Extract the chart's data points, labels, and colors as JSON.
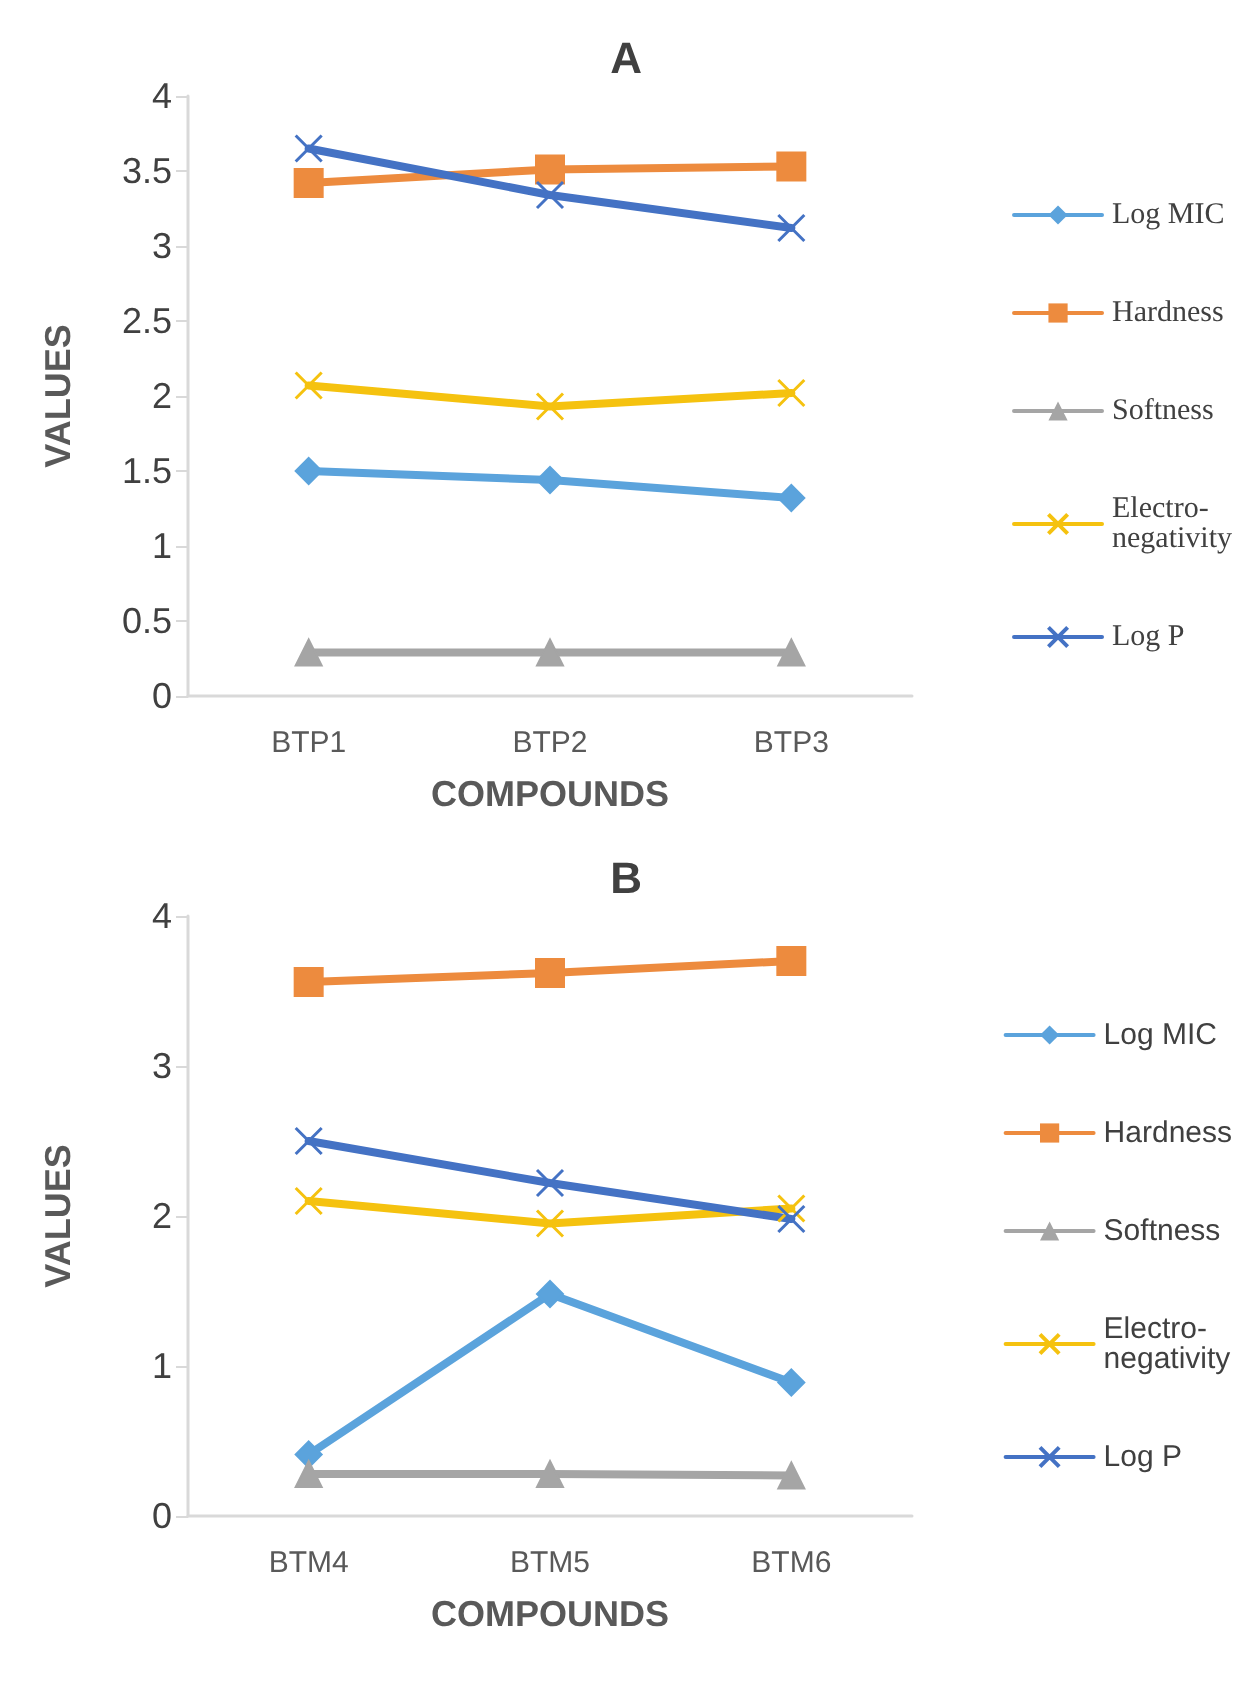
{
  "chart_data": [
    {
      "type": "line",
      "title": "A",
      "xlabel": "COMPOUNDS",
      "ylabel": "VALUES",
      "categories": [
        "BTP1",
        "BTP2",
        "BTP3"
      ],
      "ylim": [
        0,
        4
      ],
      "yticks": [
        0,
        0.5,
        1,
        1.5,
        2,
        2.5,
        3,
        3.5,
        4
      ],
      "grid": false,
      "legend": "right",
      "series": [
        {
          "name": "Log MIC",
          "color": "#5ba3dc",
          "marker": "diamond",
          "values": [
            1.5,
            1.44,
            1.32
          ]
        },
        {
          "name": "Hardness",
          "color": "#ed8b3e",
          "marker": "square",
          "values": [
            3.42,
            3.51,
            3.53
          ]
        },
        {
          "name": "Softness",
          "color": "#a5a5a5",
          "marker": "triangle",
          "values": [
            0.29,
            0.29,
            0.29
          ]
        },
        {
          "name": "Electro-\nnegativity",
          "color": "#f5c20f",
          "marker": "cross",
          "values": [
            2.07,
            1.93,
            2.02
          ]
        },
        {
          "name": "Log P",
          "color": "#4472c4",
          "marker": "cross",
          "values": [
            3.65,
            3.34,
            3.12
          ]
        }
      ]
    },
    {
      "type": "line",
      "title": "B",
      "xlabel": "COMPOUNDS",
      "ylabel": "VALUES",
      "categories": [
        "BTM4",
        "BTM5",
        "BTM6"
      ],
      "ylim": [
        0,
        4
      ],
      "yticks": [
        0,
        1,
        2,
        3,
        4
      ],
      "grid": false,
      "legend": "right",
      "series": [
        {
          "name": "Log MIC",
          "color": "#5ba3dc",
          "marker": "diamond",
          "values": [
            0.41,
            1.48,
            0.89
          ]
        },
        {
          "name": "Hardness",
          "color": "#ed8b3e",
          "marker": "square",
          "values": [
            3.56,
            3.62,
            3.7
          ]
        },
        {
          "name": "Softness",
          "color": "#a5a5a5",
          "marker": "triangle",
          "values": [
            0.28,
            0.28,
            0.27
          ]
        },
        {
          "name": "Electro-\nnegativity",
          "color": "#f5c20f",
          "marker": "cross",
          "values": [
            2.1,
            1.95,
            2.05
          ]
        },
        {
          "name": "Log P",
          "color": "#4472c4",
          "marker": "cross",
          "values": [
            2.5,
            2.22,
            1.98
          ]
        }
      ]
    }
  ]
}
